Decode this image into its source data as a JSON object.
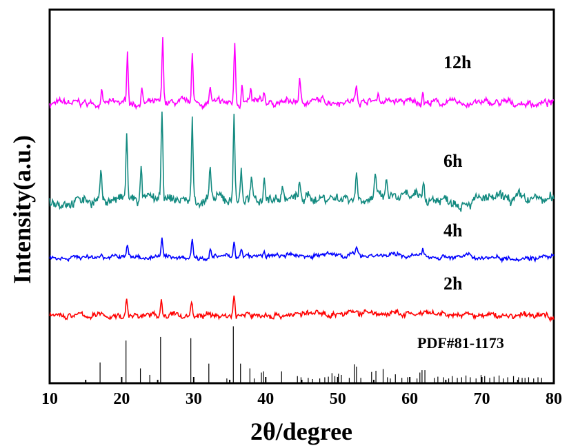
{
  "chart_data": {
    "type": "line",
    "xlabel": "2θ/degree",
    "ylabel": "Intensity(a.u.)",
    "xlim": [
      10,
      80
    ],
    "x_ticks": [
      10,
      20,
      30,
      40,
      50,
      60,
      70,
      80
    ],
    "y_ticks_shown": false,
    "grid": false,
    "legend": "labels placed at the right of each trace",
    "series": [
      {
        "name": "12h",
        "color": "#ff00ff",
        "peaks": [
          [
            17.2,
            0.25
          ],
          [
            20.8,
            0.95
          ],
          [
            22.8,
            0.3
          ],
          [
            25.7,
            1.15
          ],
          [
            29.8,
            0.95
          ],
          [
            32.3,
            0.3
          ],
          [
            35.7,
            1.15
          ],
          [
            36.7,
            0.35
          ],
          [
            37.9,
            0.2
          ],
          [
            39.8,
            0.2
          ],
          [
            44.7,
            0.4
          ],
          [
            52.6,
            0.3
          ],
          [
            55.6,
            0.15
          ],
          [
            61.8,
            0.2
          ]
        ]
      },
      {
        "name": "6h",
        "color": "#138a80",
        "peaks": [
          [
            17.1,
            0.5
          ],
          [
            20.7,
            1.1
          ],
          [
            22.7,
            0.5
          ],
          [
            25.6,
            1.45
          ],
          [
            29.8,
            1.35
          ],
          [
            32.3,
            0.45
          ],
          [
            35.6,
            1.5
          ],
          [
            36.6,
            0.55
          ],
          [
            38.0,
            0.3
          ],
          [
            39.8,
            0.45
          ],
          [
            42.3,
            0.25
          ],
          [
            44.7,
            0.2
          ],
          [
            52.6,
            0.45
          ],
          [
            55.2,
            0.3
          ],
          [
            56.8,
            0.25
          ],
          [
            61.9,
            0.3
          ]
        ]
      },
      {
        "name": "4h",
        "color": "#0000ff",
        "peaks": [
          [
            17.2,
            0.12
          ],
          [
            20.8,
            0.25
          ],
          [
            25.6,
            0.35
          ],
          [
            29.8,
            0.42
          ],
          [
            32.3,
            0.15
          ],
          [
            35.6,
            0.38
          ],
          [
            36.6,
            0.12
          ],
          [
            39.8,
            0.12
          ],
          [
            52.6,
            0.12
          ],
          [
            61.8,
            0.1
          ]
        ]
      },
      {
        "name": "2h",
        "color": "#ff0000",
        "peaks": [
          [
            20.7,
            0.32
          ],
          [
            25.5,
            0.4
          ],
          [
            29.7,
            0.32
          ],
          [
            35.6,
            0.42
          ],
          [
            52.6,
            0.12
          ]
        ]
      }
    ],
    "reference": {
      "name": "PDF#81-1173",
      "color": "#000000",
      "sticks": [
        [
          17.0,
          35
        ],
        [
          20.6,
          72
        ],
        [
          22.6,
          25
        ],
        [
          23.9,
          14
        ],
        [
          25.4,
          78
        ],
        [
          29.6,
          76
        ],
        [
          32.1,
          33
        ],
        [
          34.6,
          8
        ],
        [
          35.5,
          96
        ],
        [
          36.5,
          33
        ],
        [
          37.8,
          25
        ],
        [
          38.4,
          8
        ],
        [
          39.4,
          18
        ],
        [
          39.7,
          20
        ],
        [
          42.2,
          20
        ],
        [
          44.4,
          12
        ],
        [
          44.9,
          10
        ],
        [
          45.9,
          9
        ],
        [
          46.5,
          7
        ],
        [
          47.5,
          8
        ],
        [
          48.2,
          10
        ],
        [
          48.7,
          11
        ],
        [
          49.2,
          17
        ],
        [
          49.6,
          12
        ],
        [
          50.1,
          16
        ],
        [
          50.5,
          14
        ],
        [
          51.6,
          9
        ],
        [
          52.3,
          32
        ],
        [
          52.6,
          28
        ],
        [
          53.2,
          9
        ],
        [
          54.7,
          19
        ],
        [
          55.3,
          21
        ],
        [
          56.3,
          24
        ],
        [
          56.9,
          10
        ],
        [
          57.3,
          8
        ],
        [
          58.0,
          15
        ],
        [
          58.9,
          9
        ],
        [
          59.7,
          10
        ],
        [
          61.0,
          8
        ],
        [
          61.4,
          18
        ],
        [
          61.7,
          22
        ],
        [
          62.1,
          22
        ],
        [
          63.4,
          9
        ],
        [
          63.9,
          11
        ],
        [
          64.7,
          10
        ],
        [
          65.4,
          8
        ],
        [
          65.9,
          12
        ],
        [
          66.6,
          9
        ],
        [
          67.2,
          10
        ],
        [
          67.8,
          13
        ],
        [
          68.4,
          10
        ],
        [
          69.2,
          8
        ],
        [
          69.9,
          14
        ],
        [
          70.4,
          12
        ],
        [
          71.1,
          9
        ],
        [
          71.7,
          11
        ],
        [
          72.4,
          13
        ],
        [
          73.0,
          8
        ],
        [
          73.6,
          10
        ],
        [
          74.4,
          12
        ],
        [
          75.1,
          10
        ],
        [
          75.6,
          9
        ],
        [
          76.0,
          9
        ],
        [
          76.5,
          10
        ],
        [
          77.2,
          8
        ],
        [
          77.8,
          10
        ],
        [
          78.3,
          9
        ]
      ]
    }
  }
}
